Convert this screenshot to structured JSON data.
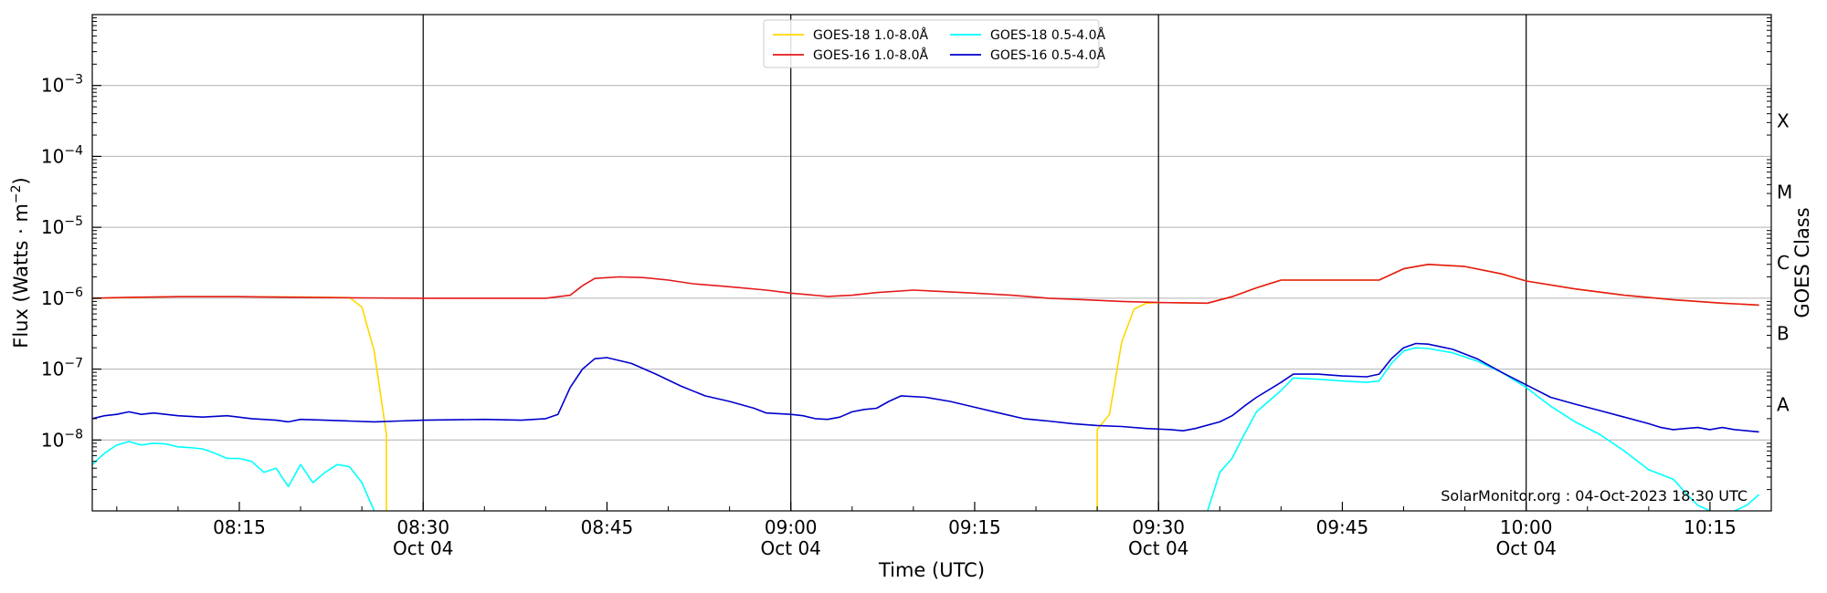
{
  "chart_data": {
    "type": "line",
    "xlabel": "Time (UTC)",
    "ylabel_text": "Flux (Watts · m",
    "ylabel_sup": "−2",
    "ylabel_close": ")",
    "right_axis_label": "GOES Class",
    "y_scale": "log",
    "ylim": [
      1e-09,
      0.01
    ],
    "xlim": [
      "08:03",
      "10:20"
    ],
    "grid": "horizontal at decades and vertical at half hours",
    "legend_placement": "top-center",
    "credit": "SolarMonitor.org : 04-Oct-2023 18:30 UTC",
    "y_ticks": [
      {
        "value": 1e-08,
        "base": "10",
        "exp": "−8"
      },
      {
        "value": 1e-07,
        "base": "10",
        "exp": "−7"
      },
      {
        "value": 1e-06,
        "base": "10",
        "exp": "−6"
      },
      {
        "value": 1e-05,
        "base": "10",
        "exp": "−5"
      },
      {
        "value": 0.0001,
        "base": "10",
        "exp": "−4"
      },
      {
        "value": 0.001,
        "base": "10",
        "exp": "−3"
      }
    ],
    "x_ticks": [
      {
        "time": "08:15",
        "label": "08:15",
        "date": ""
      },
      {
        "time": "08:30",
        "label": "08:30",
        "date": "Oct 04"
      },
      {
        "time": "08:45",
        "label": "08:45",
        "date": ""
      },
      {
        "time": "09:00",
        "label": "09:00",
        "date": "Oct 04"
      },
      {
        "time": "09:15",
        "label": "09:15",
        "date": ""
      },
      {
        "time": "09:30",
        "label": "09:30",
        "date": "Oct 04"
      },
      {
        "time": "09:45",
        "label": "09:45",
        "date": ""
      },
      {
        "time": "10:00",
        "label": "10:00",
        "date": "Oct 04"
      },
      {
        "time": "10:15",
        "label": "10:15",
        "date": ""
      }
    ],
    "goes_classes": [
      {
        "label": "A",
        "flux": 1e-08
      },
      {
        "label": "B",
        "flux": 1e-07
      },
      {
        "label": "C",
        "flux": 1e-06
      },
      {
        "label": "M",
        "flux": 1e-05
      },
      {
        "label": "X",
        "flux": 0.0001
      }
    ],
    "series": [
      {
        "name": "GOES-18 1.0-8.0Å",
        "color": "#FFD700",
        "segments": [
          [
            [
              "08:03",
              1e-06
            ],
            [
              "08:10",
              1.05e-06
            ],
            [
              "08:15",
              1.05e-06
            ],
            [
              "08:20",
              1.04e-06
            ],
            [
              "08:24",
              1.02e-06
            ],
            [
              "08:25",
              7.5e-07
            ],
            [
              "08:26",
              1.8e-07
            ],
            [
              "08:27",
              1.2e-08
            ],
            [
              "08:27",
              1e-09
            ]
          ],
          [
            [
              "09:25",
              1e-09
            ],
            [
              "09:25",
              1.4e-08
            ],
            [
              "09:26",
              2.3e-08
            ],
            [
              "09:27",
              2.4e-07
            ],
            [
              "09:28",
              7e-07
            ],
            [
              "09:29",
              8.5e-07
            ],
            [
              "09:30",
              8.7e-07
            ],
            [
              "09:32",
              8.6e-07
            ],
            [
              "09:34",
              8.5e-07
            ],
            [
              "09:36",
              1.05e-06
            ],
            [
              "09:38",
              1.4e-06
            ],
            [
              "09:40",
              1.8e-06
            ],
            [
              "09:44",
              1.8e-06
            ],
            [
              "09:48",
              1.8e-06
            ],
            [
              "09:50",
              2.6e-06
            ],
            [
              "09:52",
              3e-06
            ],
            [
              "09:55",
              2.8e-06
            ],
            [
              "09:58",
              2.2e-06
            ],
            [
              "10:00",
              1.75e-06
            ],
            [
              "10:04",
              1.35e-06
            ],
            [
              "10:08",
              1.1e-06
            ],
            [
              "10:12",
              9.5e-07
            ],
            [
              "10:16",
              8.5e-07
            ],
            [
              "10:19",
              8e-07
            ]
          ]
        ]
      },
      {
        "name": "GOES-16 1.0-8.0Å",
        "color": "#E41A1C",
        "segments": [
          [
            [
              "08:03",
              1e-06
            ],
            [
              "08:06",
              1.03e-06
            ],
            [
              "08:10",
              1.05e-06
            ],
            [
              "08:15",
              1.05e-06
            ],
            [
              "08:20",
              1.03e-06
            ],
            [
              "08:25",
              1.01e-06
            ],
            [
              "08:30",
              1e-06
            ],
            [
              "08:35",
              1e-06
            ],
            [
              "08:40",
              1e-06
            ],
            [
              "08:42",
              1.1e-06
            ],
            [
              "08:43",
              1.5e-06
            ],
            [
              "08:44",
              1.9e-06
            ],
            [
              "08:46",
              2e-06
            ],
            [
              "08:48",
              1.95e-06
            ],
            [
              "08:50",
              1.8e-06
            ],
            [
              "08:52",
              1.6e-06
            ],
            [
              "08:55",
              1.45e-06
            ],
            [
              "08:58",
              1.3e-06
            ],
            [
              "09:00",
              1.18e-06
            ],
            [
              "09:03",
              1.06e-06
            ],
            [
              "09:05",
              1.1e-06
            ],
            [
              "09:07",
              1.2e-06
            ],
            [
              "09:10",
              1.3e-06
            ],
            [
              "09:12",
              1.25e-06
            ],
            [
              "09:15",
              1.18e-06
            ],
            [
              "09:18",
              1.1e-06
            ],
            [
              "09:21",
              1e-06
            ],
            [
              "09:24",
              9.5e-07
            ],
            [
              "09:27",
              9e-07
            ],
            [
              "09:30",
              8.7e-07
            ],
            [
              "09:32",
              8.6e-07
            ],
            [
              "09:34",
              8.5e-07
            ],
            [
              "09:36",
              1.05e-06
            ],
            [
              "09:38",
              1.4e-06
            ],
            [
              "09:40",
              1.8e-06
            ],
            [
              "09:44",
              1.8e-06
            ],
            [
              "09:48",
              1.8e-06
            ],
            [
              "09:50",
              2.6e-06
            ],
            [
              "09:52",
              3e-06
            ],
            [
              "09:55",
              2.8e-06
            ],
            [
              "09:58",
              2.2e-06
            ],
            [
              "10:00",
              1.75e-06
            ],
            [
              "10:04",
              1.35e-06
            ],
            [
              "10:08",
              1.1e-06
            ],
            [
              "10:12",
              9.5e-07
            ],
            [
              "10:16",
              8.5e-07
            ],
            [
              "10:19",
              8e-07
            ]
          ]
        ]
      },
      {
        "name": "GOES-18 0.5-4.0Å",
        "color": "#00FFFF",
        "segments": [
          [
            [
              "08:03",
              4.5e-09
            ],
            [
              "08:04",
              6.5e-09
            ],
            [
              "08:05",
              8.5e-09
            ],
            [
              "08:06",
              9.5e-09
            ],
            [
              "08:07",
              8.5e-09
            ],
            [
              "08:08",
              9e-09
            ],
            [
              "08:09",
              8.8e-09
            ],
            [
              "08:10",
              8e-09
            ],
            [
              "08:11",
              7.8e-09
            ],
            [
              "08:12",
              7.5e-09
            ],
            [
              "08:13",
              6.5e-09
            ],
            [
              "08:14",
              5.5e-09
            ],
            [
              "08:15",
              5.5e-09
            ],
            [
              "08:16",
              5e-09
            ],
            [
              "08:17",
              3.5e-09
            ],
            [
              "08:18",
              4e-09
            ],
            [
              "08:19",
              2.2e-09
            ],
            [
              "08:20",
              4.5e-09
            ],
            [
              "08:21",
              2.5e-09
            ],
            [
              "08:22",
              3.5e-09
            ],
            [
              "08:23",
              4.5e-09
            ],
            [
              "08:24",
              4.2e-09
            ],
            [
              "08:25",
              2.5e-09
            ],
            [
              "08:26",
              1e-09
            ]
          ],
          [
            [
              "09:34",
              1e-09
            ],
            [
              "09:35",
              3.5e-09
            ],
            [
              "09:36",
              5.5e-09
            ],
            [
              "09:37",
              1.2e-08
            ],
            [
              "09:38",
              2.5e-08
            ],
            [
              "09:40",
              5e-08
            ],
            [
              "09:41",
              7.5e-08
            ],
            [
              "09:43",
              7.2e-08
            ],
            [
              "09:45",
              6.8e-08
            ],
            [
              "09:47",
              6.5e-08
            ],
            [
              "09:48",
              6.8e-08
            ],
            [
              "09:49",
              1.2e-07
            ],
            [
              "09:50",
              1.8e-07
            ],
            [
              "09:51",
              2e-07
            ],
            [
              "09:52",
              1.95e-07
            ],
            [
              "09:54",
              1.7e-07
            ],
            [
              "09:56",
              1.3e-07
            ],
            [
              "09:58",
              9e-08
            ],
            [
              "10:00",
              5.5e-08
            ],
            [
              "10:02",
              3e-08
            ],
            [
              "10:04",
              1.8e-08
            ],
            [
              "10:06",
              1.2e-08
            ],
            [
              "10:08",
              7e-09
            ],
            [
              "10:10",
              3.8e-09
            ],
            [
              "10:12",
              2.8e-09
            ],
            [
              "10:13",
              1.8e-09
            ],
            [
              "10:14",
              1.2e-09
            ],
            [
              "10:15",
              1e-09
            ]
          ],
          [
            [
              "10:17",
              1e-09
            ],
            [
              "10:18",
              1.2e-09
            ],
            [
              "10:19",
              1.7e-09
            ]
          ]
        ]
      },
      {
        "name": "GOES-16 0.5-4.0Å",
        "color": "#0000CD",
        "segments": [
          [
            [
              "08:03",
              2e-08
            ],
            [
              "08:04",
              2.2e-08
            ],
            [
              "08:05",
              2.3e-08
            ],
            [
              "08:06",
              2.5e-08
            ],
            [
              "08:07",
              2.3e-08
            ],
            [
              "08:08",
              2.4e-08
            ],
            [
              "08:10",
              2.2e-08
            ],
            [
              "08:12",
              2.1e-08
            ],
            [
              "08:14",
              2.2e-08
            ],
            [
              "08:16",
              2e-08
            ],
            [
              "08:18",
              1.9e-08
            ],
            [
              "08:19",
              1.8e-08
            ],
            [
              "08:20",
              1.95e-08
            ],
            [
              "08:22",
              1.9e-08
            ],
            [
              "08:24",
              1.85e-08
            ],
            [
              "08:26",
              1.8e-08
            ],
            [
              "08:28",
              1.85e-08
            ],
            [
              "08:30",
              1.9e-08
            ],
            [
              "08:35",
              1.95e-08
            ],
            [
              "08:38",
              1.9e-08
            ],
            [
              "08:40",
              2e-08
            ],
            [
              "08:41",
              2.3e-08
            ],
            [
              "08:42",
              5.5e-08
            ],
            [
              "08:43",
              1e-07
            ],
            [
              "08:44",
              1.4e-07
            ],
            [
              "08:45",
              1.45e-07
            ],
            [
              "08:47",
              1.2e-07
            ],
            [
              "08:49",
              8.5e-08
            ],
            [
              "08:51",
              5.8e-08
            ],
            [
              "08:53",
              4.2e-08
            ],
            [
              "08:55",
              3.5e-08
            ],
            [
              "08:57",
              2.8e-08
            ],
            [
              "08:58",
              2.4e-08
            ],
            [
              "09:00",
              2.3e-08
            ],
            [
              "09:01",
              2.2e-08
            ],
            [
              "09:02",
              2e-08
            ],
            [
              "09:03",
              1.95e-08
            ],
            [
              "09:04",
              2.1e-08
            ],
            [
              "09:05",
              2.5e-08
            ],
            [
              "09:06",
              2.7e-08
            ],
            [
              "09:07",
              2.8e-08
            ],
            [
              "09:08",
              3.5e-08
            ],
            [
              "09:09",
              4.2e-08
            ],
            [
              "09:11",
              4e-08
            ],
            [
              "09:13",
              3.5e-08
            ],
            [
              "09:15",
              2.9e-08
            ],
            [
              "09:17",
              2.4e-08
            ],
            [
              "09:19",
              2e-08
            ],
            [
              "09:21",
              1.85e-08
            ],
            [
              "09:23",
              1.7e-08
            ],
            [
              "09:25",
              1.6e-08
            ],
            [
              "09:27",
              1.55e-08
            ],
            [
              "09:29",
              1.45e-08
            ],
            [
              "09:31",
              1.4e-08
            ],
            [
              "09:32",
              1.35e-08
            ],
            [
              "09:33",
              1.45e-08
            ],
            [
              "09:35",
              1.8e-08
            ],
            [
              "09:36",
              2.2e-08
            ],
            [
              "09:37",
              3e-08
            ],
            [
              "09:38",
              4e-08
            ],
            [
              "09:40",
              6.5e-08
            ],
            [
              "09:41",
              8.5e-08
            ],
            [
              "09:43",
              8.5e-08
            ],
            [
              "09:45",
              8e-08
            ],
            [
              "09:47",
              7.8e-08
            ],
            [
              "09:48",
              8.5e-08
            ],
            [
              "09:49",
              1.4e-07
            ],
            [
              "09:50",
              2e-07
            ],
            [
              "09:51",
              2.3e-07
            ],
            [
              "09:52",
              2.25e-07
            ],
            [
              "09:54",
              1.9e-07
            ],
            [
              "09:56",
              1.4e-07
            ],
            [
              "09:58",
              9e-08
            ],
            [
              "10:00",
              6e-08
            ],
            [
              "10:02",
              4e-08
            ],
            [
              "10:04",
              3.2e-08
            ],
            [
              "10:06",
              2.6e-08
            ],
            [
              "10:08",
              2.1e-08
            ],
            [
              "10:10",
              1.7e-08
            ],
            [
              "10:11",
              1.5e-08
            ],
            [
              "10:12",
              1.4e-08
            ],
            [
              "10:13",
              1.45e-08
            ],
            [
              "10:14",
              1.5e-08
            ],
            [
              "10:15",
              1.4e-08
            ],
            [
              "10:16",
              1.5e-08
            ],
            [
              "10:17",
              1.4e-08
            ],
            [
              "10:18",
              1.35e-08
            ],
            [
              "10:19",
              1.3e-08
            ]
          ]
        ]
      }
    ]
  }
}
